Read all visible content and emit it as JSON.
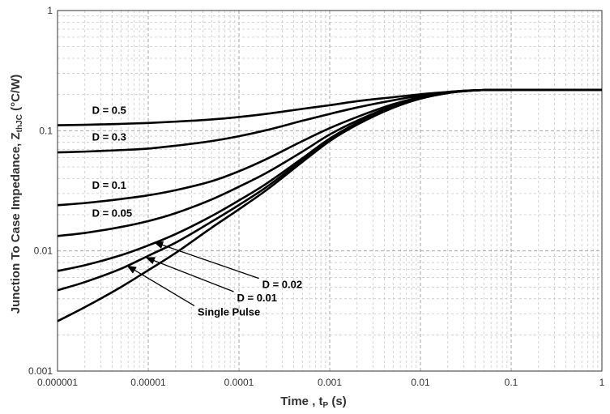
{
  "chart_data": {
    "type": "line",
    "title": "",
    "xlabel": "Time , t",
    "xlabel_sub": "P",
    "xlabel_unit": " (s)",
    "ylabel": "Junction To Case Impedance, Z",
    "ylabel_sub": "thJC",
    "ylabel_unit": " (°C/W)",
    "xscale": "log",
    "yscale": "log",
    "xlim": [
      1e-06,
      1
    ],
    "ylim": [
      0.001,
      1
    ],
    "grid": true,
    "x_tick_labels": [
      "0.000001",
      "0.00001",
      "0.0001",
      "0.001",
      "0.01",
      "0.1",
      "1"
    ],
    "y_tick_labels": [
      "0.001",
      "0.01",
      "0.1",
      "1"
    ],
    "x": [
      1e-06,
      2e-06,
      5e-06,
      1e-05,
      2e-05,
      5e-05,
      0.0001,
      0.0002,
      0.0005,
      0.001,
      0.002,
      0.005,
      0.01,
      0.02,
      0.03,
      0.05,
      0.1,
      0.2,
      0.5,
      1
    ],
    "series": [
      {
        "name": "D = 0.5",
        "values": [
          0.111,
          0.112,
          0.114,
          0.116,
          0.119,
          0.124,
          0.13,
          0.138,
          0.152,
          0.163,
          0.176,
          0.19,
          0.201,
          0.21,
          0.215,
          0.218,
          0.219,
          0.219,
          0.219,
          0.219
        ]
      },
      {
        "name": "D = 0.3",
        "values": [
          0.066,
          0.067,
          0.069,
          0.071,
          0.075,
          0.082,
          0.09,
          0.101,
          0.121,
          0.138,
          0.156,
          0.179,
          0.196,
          0.21,
          0.215,
          0.218,
          0.219,
          0.219,
          0.219,
          0.219
        ]
      },
      {
        "name": "D = 0.1",
        "values": [
          0.024,
          0.025,
          0.027,
          0.029,
          0.032,
          0.038,
          0.046,
          0.058,
          0.082,
          0.105,
          0.13,
          0.166,
          0.19,
          0.208,
          0.214,
          0.218,
          0.219,
          0.219,
          0.219,
          0.219
        ]
      },
      {
        "name": "D = 0.05",
        "values": [
          0.0133,
          0.0141,
          0.0158,
          0.0177,
          0.0206,
          0.0268,
          0.0342,
          0.0445,
          0.067,
          0.093,
          0.121,
          0.161,
          0.188,
          0.207,
          0.214,
          0.218,
          0.219,
          0.219,
          0.219,
          0.219
        ]
      },
      {
        "name": "D = 0.02",
        "values": [
          0.0068,
          0.0076,
          0.0092,
          0.0111,
          0.0138,
          0.0195,
          0.0263,
          0.0362,
          0.059,
          0.086,
          0.116,
          0.157,
          0.186,
          0.206,
          0.213,
          0.218,
          0.219,
          0.219,
          0.219,
          0.219
        ]
      },
      {
        "name": "D = 0.01",
        "values": [
          0.0047,
          0.0055,
          0.0071,
          0.0091,
          0.0117,
          0.0175,
          0.0241,
          0.0339,
          0.057,
          0.084,
          0.114,
          0.156,
          0.185,
          0.206,
          0.213,
          0.218,
          0.219,
          0.219,
          0.219,
          0.219
        ]
      },
      {
        "name": "Single Pulse",
        "values": [
          0.0026,
          0.0034,
          0.005,
          0.0069,
          0.0096,
          0.0156,
          0.0222,
          0.032,
          0.055,
          0.082,
          0.112,
          0.155,
          0.185,
          0.206,
          0.213,
          0.218,
          0.219,
          0.219,
          0.219,
          0.219
        ]
      }
    ],
    "annotations": [
      {
        "text": "D = 0.5",
        "at_x": 2.4e-06,
        "at_y": 0.138,
        "arrow": false
      },
      {
        "text": "D = 0.3",
        "at_x": 2.4e-06,
        "at_y": 0.083,
        "arrow": false
      },
      {
        "text": "D = 0.1",
        "at_x": 2.4e-06,
        "at_y": 0.033,
        "arrow": false
      },
      {
        "text": "D = 0.05",
        "at_x": 2.4e-06,
        "at_y": 0.0193,
        "arrow": false
      },
      {
        "text": "D = 0.02",
        "at_x": 0.00018,
        "at_y": 0.0049,
        "arrow": true,
        "arrow_to_x": 1.17e-05,
        "arrow_to_y": 0.0118
      },
      {
        "text": "D = 0.01",
        "at_x": 9.5e-05,
        "at_y": 0.0038,
        "arrow": true,
        "arrow_to_x": 9.5e-06,
        "arrow_to_y": 0.0088
      },
      {
        "text": "Single Pulse",
        "at_x": 3.5e-05,
        "at_y": 0.0029,
        "arrow": true,
        "arrow_to_x": 5.9e-06,
        "arrow_to_y": 0.0075
      }
    ]
  }
}
